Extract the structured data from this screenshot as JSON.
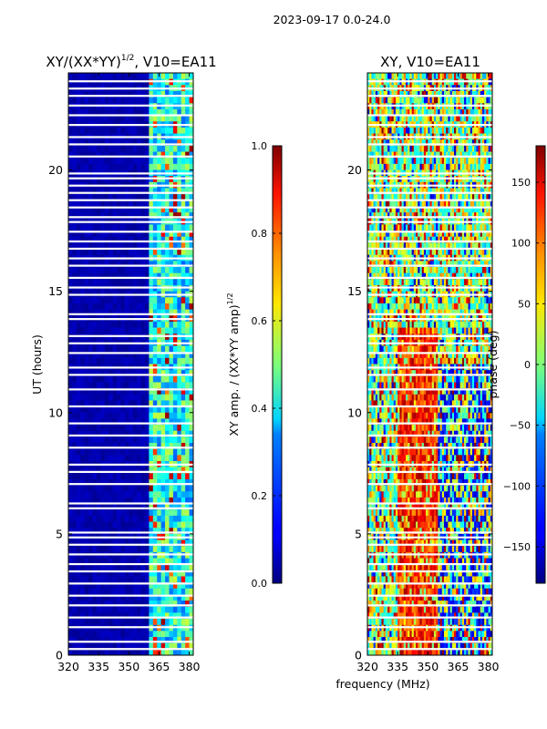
{
  "suptitle": "2023-09-17 0.0-24.0",
  "chart_data": [
    {
      "type": "heatmap",
      "title": "XY/(XX*YY)",
      "title_exp": "1/2",
      "title_suffix": ", V10=EA11",
      "xlabel": "",
      "ylabel": "UT (hours)",
      "xlim": [
        320,
        382
      ],
      "ylim": [
        0,
        24
      ],
      "xticks": [
        "320",
        "335",
        "350",
        "365",
        "380"
      ],
      "yticks": [
        "0",
        "5",
        "10",
        "15",
        "20"
      ],
      "colorbar": {
        "label": "XY amp. / (XX*YY amp)",
        "label_exp": "1/2",
        "range": [
          0.0,
          1.0
        ],
        "ticks": [
          "0.0",
          "0.2",
          "0.4",
          "0.6",
          "0.8",
          "1.0"
        ],
        "colormap": "jet"
      },
      "bright_band_mhz": [
        361,
        382
      ],
      "gap_hours": [
        0.25,
        0.55,
        1.15,
        1.55,
        2.05,
        2.45,
        2.95,
        3.45,
        3.75,
        4.15,
        4.55,
        4.85,
        5.05,
        6.05,
        6.25,
        7.05,
        7.55,
        7.85,
        8.55,
        9.05,
        9.55,
        10.25,
        10.95,
        11.55,
        11.85,
        12.45,
        12.85,
        13.15,
        13.85,
        14.05,
        14.85,
        15.15,
        15.55,
        16.05,
        16.35,
        16.75,
        17.05,
        17.45,
        17.85,
        18.05,
        18.45,
        18.75,
        19.05,
        19.35,
        19.65,
        19.85,
        20.55,
        21.05,
        21.35,
        21.85,
        22.25,
        22.65,
        23.05,
        23.35,
        23.65
      ]
    },
    {
      "type": "heatmap",
      "title": "XY, V10=EA11",
      "xlabel": "frequency (MHz)",
      "ylabel": "",
      "xlim": [
        320,
        382
      ],
      "ylim": [
        0,
        24
      ],
      "xticks": [
        "320",
        "335",
        "350",
        "365",
        "380"
      ],
      "yticks": [
        "0",
        "5",
        "10",
        "15",
        "20"
      ],
      "colorbar": {
        "label": "phase (deg)",
        "range": [
          -180,
          180
        ],
        "ticks": [
          "−150",
          "−100",
          "−50",
          "0",
          "50",
          "100",
          "150"
        ],
        "colormap": "jet"
      },
      "hot_band_mhz": [
        335,
        355
      ],
      "gap_hours": [
        0.25,
        0.55,
        1.15,
        1.55,
        2.05,
        2.45,
        2.95,
        3.45,
        3.75,
        4.15,
        4.55,
        4.85,
        5.05,
        6.05,
        6.25,
        7.05,
        7.55,
        7.85,
        8.55,
        9.05,
        9.55,
        10.25,
        10.95,
        11.55,
        11.85,
        12.45,
        12.85,
        13.15,
        13.85,
        14.05,
        14.85,
        15.15,
        15.55,
        16.05,
        16.35,
        16.75,
        17.05,
        17.45,
        17.85,
        18.05,
        18.45,
        18.75,
        19.05,
        19.35,
        19.65,
        19.85,
        20.55,
        21.05,
        21.35,
        21.85,
        22.25,
        22.65,
        23.05,
        23.35,
        23.65
      ]
    }
  ]
}
